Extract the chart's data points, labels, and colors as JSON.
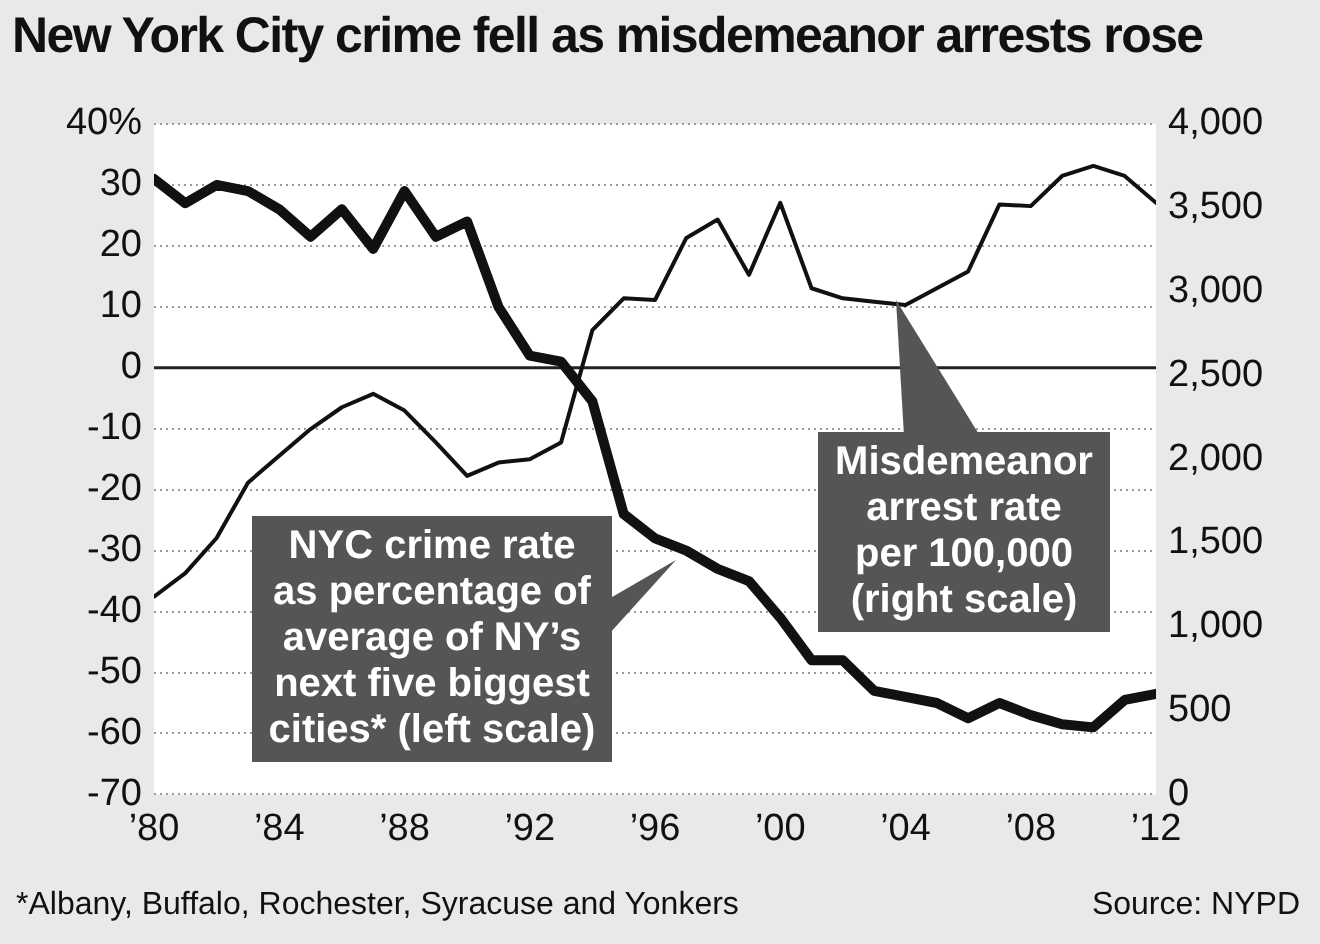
{
  "chart_data": {
    "type": "line",
    "title": "New York City crime fell as misdemeanor arrests rose",
    "x": [
      1980,
      1981,
      1982,
      1983,
      1984,
      1985,
      1986,
      1987,
      1988,
      1989,
      1990,
      1991,
      1992,
      1993,
      1994,
      1995,
      1996,
      1997,
      1998,
      1999,
      2000,
      2001,
      2002,
      2003,
      2004,
      2005,
      2006,
      2007,
      2008,
      2009,
      2010,
      2011,
      2012
    ],
    "series": [
      {
        "color": "#111111",
        "values": [
          31,
          27,
          30,
          29,
          26,
          21.5,
          26,
          19.5,
          29,
          21.5,
          24,
          10,
          2,
          1,
          -5.5,
          -24,
          -28,
          -30,
          -33,
          -35,
          -41,
          -48,
          -48,
          -53,
          -54,
          -55,
          -57.5,
          -55,
          -57,
          -58.5,
          -59,
          -54.5,
          -53.5
        ]
      },
      {
        "color": "#111111",
        "axis": "y2",
        "values": [
          1180,
          1320,
          1530,
          1860,
          2020,
          2180,
          2310,
          2390,
          2290,
          2100,
          1900,
          1980,
          2000,
          2100,
          2770,
          2960,
          2950,
          3320,
          3430,
          3100,
          3530,
          3020,
          2960,
          2940,
          2920,
          3020,
          3120,
          3520,
          3510,
          3690,
          3750,
          3690,
          3530
        ]
      }
    ],
    "xlim": [
      1980,
      2012
    ],
    "xticks": [
      {
        "value": 1980,
        "label": "’80"
      },
      {
        "value": 1984,
        "label": "’84"
      },
      {
        "value": 1988,
        "label": "’88"
      },
      {
        "value": 1992,
        "label": "’92"
      },
      {
        "value": 1996,
        "label": "’96"
      },
      {
        "value": 2000,
        "label": "’00"
      },
      {
        "value": 2004,
        "label": "’04"
      },
      {
        "value": 2008,
        "label": "’08"
      },
      {
        "value": 2012,
        "label": "’12"
      }
    ],
    "ylim": [
      -70,
      40
    ],
    "yticks": [
      -70,
      -60,
      -50,
      -40,
      -30,
      -20,
      -10,
      0,
      10,
      20,
      30,
      {
        "value": 40,
        "label": "40%"
      }
    ],
    "y2lim": [
      0,
      4000
    ],
    "y2ticks": [
      0,
      500,
      {
        "value": 1000,
        "label": "1,000"
      },
      {
        "value": 1500,
        "label": "1,500"
      },
      {
        "value": 2000,
        "label": "2,000"
      },
      {
        "value": 2500,
        "label": "2,500"
      },
      {
        "value": 3000,
        "label": "3,000"
      },
      {
        "value": 3500,
        "label": "3,500"
      },
      {
        "value": 4000,
        "label": "4,000"
      }
    ],
    "grid": "y",
    "legend": false,
    "ref_lines": [
      {
        "axis": "y",
        "value": 0,
        "color": "#222222"
      }
    ],
    "annotations": [
      "NYC crime rate as percentage of average of NY’s next five biggest cities* (left scale)",
      "Misdemeanor arrest rate per 100,000 (right scale)",
      "*Albany, Buffalo, Rochester, Syracuse and Yonkers",
      "Source: NYPD"
    ]
  }
}
